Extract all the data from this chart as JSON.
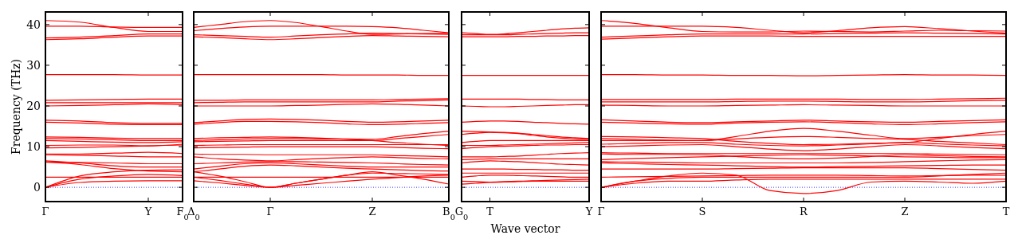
{
  "chart_data": [
    {
      "type": "line",
      "ylabel": "Frequency (THz)",
      "categories": [
        "Γ",
        null,
        null,
        "Y",
        "F$_{0}$"
      ],
      "ylim": [
        -3.5,
        43.1
      ],
      "yticks": [
        0,
        10,
        20,
        30,
        40
      ],
      "grid": false,
      "ref_lines": [
        {
          "axis": "y",
          "value": 0,
          "color": "#0000ff",
          "line_style": "dotted"
        }
      ],
      "series": [
        {
          "color": "#ff0000",
          "values": [
            0,
            1.2,
            1.5,
            1.6,
            1.6
          ]
        },
        {
          "color": "#ff0000",
          "values": [
            0,
            2,
            2.8,
            3.2,
            2.9
          ]
        },
        {
          "color": "#ff0000",
          "values": [
            0,
            2.8,
            3.8,
            4.2,
            4.3
          ]
        },
        {
          "color": "#ff0000",
          "values": [
            2.5,
            2.5,
            2.5,
            2.5,
            2.5
          ]
        },
        {
          "color": "#ff0000",
          "values": [
            6.2,
            5.6,
            4.6,
            4,
            3.8
          ]
        },
        {
          "color": "#ff0000",
          "values": [
            6.5,
            6,
            5.3,
            5,
            5
          ]
        },
        {
          "color": "#ff0000",
          "values": [
            6.2,
            6.1,
            6,
            5.8,
            5.8
          ]
        },
        {
          "color": "#ff0000",
          "values": [
            8,
            7.9,
            7.7,
            7.5,
            7.5
          ]
        },
        {
          "color": "#ff0000",
          "values": [
            8.2,
            8.2,
            8.4,
            8.6,
            8.3
          ]
        },
        {
          "color": "#ff0000",
          "values": [
            9.7,
            9.8,
            10,
            10.2,
            10.4
          ]
        },
        {
          "color": "#ff0000",
          "values": [
            10.3,
            10.4,
            10.4,
            10.2,
            10.6
          ]
        },
        {
          "color": "#ff0000",
          "values": [
            11.5,
            11.3,
            11.1,
            11,
            11.2
          ]
        },
        {
          "color": "#ff0000",
          "values": [
            12,
            11.9,
            11.7,
            11.5,
            11.5
          ]
        },
        {
          "color": "#ff0000",
          "values": [
            12.4,
            12.3,
            12.1,
            12,
            12
          ]
        },
        {
          "color": "#ff0000",
          "values": [
            16,
            15.8,
            15.5,
            15.4,
            15.4
          ]
        },
        {
          "color": "#ff0000",
          "values": [
            16.5,
            16.3,
            15.9,
            15.7,
            15.7
          ]
        },
        {
          "color": "#ff0000",
          "values": [
            20,
            20.1,
            20.3,
            20.5,
            20.3
          ]
        },
        {
          "color": "#ff0000",
          "values": [
            20.8,
            20.8,
            20.8,
            20.8,
            20.8
          ]
        },
        {
          "color": "#ff0000",
          "values": [
            21.4,
            21.5,
            21.6,
            21.7,
            21.7
          ]
        },
        {
          "color": "#ff0000",
          "values": [
            27.7,
            27.7,
            27.7,
            27.6,
            27.6
          ]
        },
        {
          "color": "#ff0000",
          "values": [
            36.3,
            36.5,
            36.9,
            37.2,
            37.2
          ]
        },
        {
          "color": "#ff0000",
          "values": [
            36.7,
            36.9,
            37.3,
            37.7,
            37.7
          ]
        },
        {
          "color": "#ff0000",
          "values": [
            39.6,
            39.6,
            39.4,
            39.3,
            39.3
          ]
        },
        {
          "color": "#ff0000",
          "values": [
            41,
            40.6,
            39.3,
            38.3,
            38.3
          ]
        }
      ]
    },
    {
      "type": "line",
      "categories": [
        "Δ$_{0}$",
        null,
        null,
        "Γ",
        null,
        null,
        null,
        "Z",
        null,
        null,
        "B$_{0}$"
      ],
      "ylim": [
        -3.5,
        43.1
      ],
      "yticks": [
        0,
        10,
        20,
        30,
        40
      ],
      "tick_labels": "x",
      "grid": false,
      "ref_lines": [
        {
          "axis": "y",
          "value": 0,
          "color": "#0000ff",
          "line_style": "dotted"
        }
      ],
      "series": [
        {
          "color": "#ff0000",
          "values": [
            1.6,
            1.1,
            0.5,
            0,
            0.5,
            1,
            1.5,
            2,
            2.4,
            2.8,
            3
          ]
        },
        {
          "color": "#ff0000",
          "values": [
            2.5,
            1.7,
            0.8,
            0,
            1,
            2,
            3,
            3.5,
            3.4,
            3.3,
            3.2
          ]
        },
        {
          "color": "#ff0000",
          "values": [
            3.8,
            2.8,
            1.4,
            0,
            1,
            2,
            3,
            3.8,
            3,
            2,
            0.8
          ]
        },
        {
          "color": "#ff0000",
          "values": [
            2.5,
            2.5,
            2.5,
            2.5,
            2.5,
            2.5,
            2.5,
            2.5,
            2.5,
            2.5,
            2.5
          ]
        },
        {
          "color": "#ff0000",
          "values": [
            3.8,
            4.5,
            5.2,
            5.5,
            5.3,
            5,
            4.7,
            4.5,
            4.3,
            4.1,
            4
          ]
        },
        {
          "color": "#ff0000",
          "values": [
            4.5,
            5.2,
            5.8,
            6,
            5.8,
            5.5,
            5.2,
            5,
            5,
            5,
            5
          ]
        },
        {
          "color": "#ff0000",
          "values": [
            5.8,
            6,
            6.2,
            6.3,
            6.3,
            6.2,
            6.1,
            6,
            5.8,
            5.6,
            5.5
          ]
        },
        {
          "color": "#ff0000",
          "values": [
            7.5,
            7,
            6.7,
            6.5,
            6.8,
            7.1,
            7.3,
            7.5,
            7.3,
            7.1,
            7
          ]
        },
        {
          "color": "#ff0000",
          "values": [
            8.2,
            8.1,
            8.1,
            8,
            8,
            8,
            8,
            8,
            7.8,
            7.7,
            7.5
          ]
        },
        {
          "color": "#ff0000",
          "values": [
            9.7,
            9.8,
            9.9,
            10,
            10,
            10,
            10,
            10,
            9.8,
            9.6,
            9.5
          ]
        },
        {
          "color": "#ff0000",
          "values": [
            10.3,
            10.4,
            10.5,
            10.5,
            10.5,
            10.5,
            10.5,
            10.5,
            10.5,
            10.5,
            10.5
          ]
        },
        {
          "color": "#ff0000",
          "values": [
            11.2,
            11.3,
            11.4,
            11.5,
            11.5,
            11.5,
            11.5,
            11.5,
            12,
            12.5,
            13
          ]
        },
        {
          "color": "#ff0000",
          "values": [
            11.5,
            11.7,
            11.9,
            12,
            12,
            11.9,
            11.9,
            11.8,
            12.5,
            13.2,
            13.8
          ]
        },
        {
          "color": "#ff0000",
          "values": [
            12,
            12.2,
            12.3,
            12.4,
            12.3,
            12.1,
            11.8,
            11.5,
            11,
            10.6,
            10.3
          ]
        },
        {
          "color": "#ff0000",
          "values": [
            15.5,
            15.9,
            16.2,
            16.2,
            16.1,
            15.9,
            15.6,
            15.4,
            15.5,
            15.7,
            15.9
          ]
        },
        {
          "color": "#ff0000",
          "values": [
            15.9,
            16.3,
            16.7,
            16.8,
            16.7,
            16.5,
            16.2,
            16,
            16.1,
            16.3,
            16.5
          ]
        },
        {
          "color": "#ff0000",
          "values": [
            20,
            20,
            20,
            20,
            20.1,
            20.2,
            20.4,
            20.5,
            20.4,
            20.2,
            20
          ]
        },
        {
          "color": "#ff0000",
          "values": [
            20.8,
            20.9,
            21,
            21,
            21,
            21,
            21,
            21,
            21.2,
            21.3,
            21.5
          ]
        },
        {
          "color": "#ff0000",
          "values": [
            21.4,
            21.4,
            21.5,
            21.5,
            21.5,
            21.5,
            21.5,
            21.5,
            21.6,
            21.7,
            21.8
          ]
        },
        {
          "color": "#ff0000",
          "values": [
            27.7,
            27.7,
            27.7,
            27.7,
            27.7,
            27.7,
            27.6,
            27.6,
            27.6,
            27.5,
            27.5
          ]
        },
        {
          "color": "#ff0000",
          "values": [
            37,
            36.8,
            36.5,
            36.3,
            36.5,
            36.8,
            37.1,
            37.3,
            37.2,
            37.1,
            37
          ]
        },
        {
          "color": "#ff0000",
          "values": [
            37.5,
            37.3,
            37.1,
            36.9,
            37.2,
            37.5,
            37.7,
            37.9,
            37.8,
            37.7,
            37.6
          ]
        },
        {
          "color": "#ff0000",
          "values": [
            38.5,
            39,
            39.4,
            39.6,
            39.6,
            39.6,
            39.6,
            39.5,
            39.2,
            38.6,
            38
          ]
        },
        {
          "color": "#ff0000",
          "values": [
            39.3,
            40,
            40.7,
            41,
            40.5,
            39.5,
            38.4,
            37.6,
            37.7,
            37.8,
            37.9
          ]
        }
      ]
    },
    {
      "type": "line",
      "xlabel": "Wave vector",
      "categories": [
        "G$_{0}$",
        null,
        "T",
        null,
        null,
        null,
        null,
        null,
        null,
        "Y"
      ],
      "ylim": [
        -3.5,
        43.1
      ],
      "yticks": [
        0,
        10,
        20,
        30,
        40
      ],
      "tick_labels": "x",
      "grid": false,
      "ref_lines": [
        {
          "axis": "y",
          "value": 0,
          "color": "#0000ff",
          "line_style": "dotted"
        }
      ],
      "series": [
        {
          "color": "#ff0000",
          "values": [
            0.8,
            1,
            1.2,
            1.3,
            1.4,
            1.5,
            1.5,
            1.5,
            1.5,
            1.5
          ]
        },
        {
          "color": "#ff0000",
          "values": [
            1.5,
            1.4,
            1.3,
            1.4,
            1.5,
            1.6,
            1.7,
            1.8,
            1.9,
            2
          ]
        },
        {
          "color": "#ff0000",
          "values": [
            2.5,
            2.8,
            3,
            3,
            2.9,
            2.8,
            2.7,
            2.6,
            2.5,
            2.5
          ]
        },
        {
          "color": "#ff0000",
          "values": [
            3.5,
            3.5,
            3.5,
            3.5,
            3.5,
            3.5,
            3.5,
            3.5,
            3.5,
            3.5
          ]
        },
        {
          "color": "#ff0000",
          "values": [
            4.5,
            4.5,
            4.5,
            4.5,
            4.4,
            4.4,
            4.3,
            4.3,
            4.2,
            4.2
          ]
        },
        {
          "color": "#ff0000",
          "values": [
            6,
            6.3,
            6.5,
            6.4,
            6.3,
            6.1,
            5.9,
            5.7,
            5.6,
            5.5
          ]
        },
        {
          "color": "#ff0000",
          "values": [
            6.8,
            6.9,
            7,
            7,
            7,
            7,
            7,
            7,
            7,
            7
          ]
        },
        {
          "color": "#ff0000",
          "values": [
            7.5,
            7.5,
            7.5,
            7.6,
            7.7,
            7.9,
            8.1,
            8.3,
            8.4,
            8.5
          ]
        },
        {
          "color": "#ff0000",
          "values": [
            9.5,
            9.8,
            10,
            10.1,
            10.2,
            10.3,
            10.4,
            10.4,
            10.5,
            10.5
          ]
        },
        {
          "color": "#ff0000",
          "values": [
            10.3,
            10.3,
            10.3,
            10.4,
            10.5,
            10.6,
            10.7,
            10.8,
            10.9,
            11
          ]
        },
        {
          "color": "#ff0000",
          "values": [
            11,
            11.3,
            11.5,
            11.5,
            11.5,
            11.5,
            11.5,
            11.5,
            11.5,
            11.5
          ]
        },
        {
          "color": "#ff0000",
          "values": [
            13,
            13.3,
            13.5,
            13.4,
            13.2,
            12.8,
            12.4,
            12.1,
            11.9,
            11.8
          ]
        },
        {
          "color": "#ff0000",
          "values": [
            13.8,
            13.7,
            13.6,
            13.5,
            13.3,
            13,
            12.7,
            12.4,
            12.2,
            12
          ]
        },
        {
          "color": "#ff0000",
          "values": [
            16,
            16.2,
            16.3,
            16.3,
            16.2,
            16,
            15.9,
            15.7,
            15.6,
            15.5
          ]
        },
        {
          "color": "#ff0000",
          "values": [
            20,
            19.9,
            19.8,
            19.8,
            19.9,
            20,
            20.1,
            20.2,
            20.3,
            20.3
          ]
        },
        {
          "color": "#ff0000",
          "values": [
            21.7,
            21.7,
            21.7,
            21.7,
            21.7,
            21.6,
            21.6,
            21.5,
            21.5,
            21.5
          ]
        },
        {
          "color": "#ff0000",
          "values": [
            27.5,
            27.5,
            27.5,
            27.5,
            27.5,
            27.5,
            27.5,
            27.5,
            27.5,
            27.5
          ]
        },
        {
          "color": "#ff0000",
          "values": [
            37,
            37,
            37,
            37,
            37.1,
            37.1,
            37.2,
            37.2,
            37.3,
            37.3
          ]
        },
        {
          "color": "#ff0000",
          "values": [
            37.5,
            37.5,
            37.5,
            37.5,
            37.6,
            37.7,
            37.8,
            37.9,
            38,
            38
          ]
        },
        {
          "color": "#ff0000",
          "values": [
            38,
            37.8,
            37.6,
            37.7,
            38,
            38.3,
            38.6,
            38.9,
            39.1,
            39.2
          ]
        }
      ]
    },
    {
      "type": "line",
      "categories": [
        "Γ",
        null,
        null,
        "S",
        null,
        null,
        "R",
        null,
        null,
        "Z",
        null,
        null,
        "T"
      ],
      "ylim": [
        -3.5,
        43.1
      ],
      "yticks": [
        0,
        10,
        20,
        30,
        40
      ],
      "tick_labels": "x",
      "grid": false,
      "ref_lines": [
        {
          "axis": "y",
          "value": 0,
          "color": "#0000ff",
          "line_style": "dotted"
        }
      ],
      "series": [
        {
          "color": "#ff0000",
          "values": [
            0,
            1.5,
            2.8,
            3.5,
            3,
            -0.8,
            -1.5,
            -0.8,
            1.3,
            1.5,
            1.3,
            1,
            1.5
          ]
        },
        {
          "color": "#ff0000",
          "values": [
            0,
            1,
            1.5,
            1.5,
            1.8,
            2,
            2,
            2,
            2,
            2,
            2,
            2,
            2
          ]
        },
        {
          "color": "#ff0000",
          "values": [
            0,
            1.5,
            2.2,
            2.5,
            2.5,
            2.5,
            2.5,
            2.5,
            2.5,
            2.5,
            2.8,
            3.2,
            3.5
          ]
        },
        {
          "color": "#ff0000",
          "values": [
            2.5,
            2.6,
            2.7,
            2.8,
            2.9,
            3,
            3,
            3,
            2.9,
            2.8,
            2.9,
            3,
            3
          ]
        },
        {
          "color": "#ff0000",
          "values": [
            4.5,
            4.5,
            4.5,
            4.5,
            4.6,
            4.7,
            4.8,
            4.8,
            4.8,
            4.8,
            4.6,
            4.4,
            4.2
          ]
        },
        {
          "color": "#ff0000",
          "values": [
            6,
            5.8,
            5.6,
            5.5,
            5.3,
            5.1,
            5,
            5.1,
            5.2,
            5.3,
            5.4,
            5.5,
            5.5
          ]
        },
        {
          "color": "#ff0000",
          "values": [
            6.3,
            6.2,
            6.1,
            6,
            6,
            6,
            6,
            6,
            6.1,
            6.3,
            6.5,
            6.7,
            6.8
          ]
        },
        {
          "color": "#ff0000",
          "values": [
            6.8,
            7.1,
            7.3,
            7.5,
            7.7,
            7.9,
            8,
            7.9,
            7.7,
            7.5,
            7.4,
            7.3,
            7.3
          ]
        },
        {
          "color": "#ff0000",
          "values": [
            8.2,
            8.1,
            8.1,
            8,
            7.6,
            7.2,
            7,
            7.2,
            7.6,
            8,
            7.8,
            7.6,
            7.5
          ]
        },
        {
          "color": "#ff0000",
          "values": [
            8.5,
            8.4,
            8.3,
            8.3,
            8.3,
            8.3,
            8.3,
            8.3,
            8.3,
            8.3,
            8.2,
            8.1,
            8
          ]
        },
        {
          "color": "#ff0000",
          "values": [
            10,
            10.2,
            10.4,
            10.5,
            10,
            9.4,
            9,
            9.4,
            10,
            10.5,
            10.2,
            9.8,
            9.5
          ]
        },
        {
          "color": "#ff0000",
          "values": [
            10.6,
            10.8,
            11,
            11,
            10.6,
            10.3,
            10.2,
            10.4,
            10.7,
            11,
            10.7,
            10.4,
            10.2
          ]
        },
        {
          "color": "#ff0000",
          "values": [
            11.5,
            11.5,
            11.5,
            11.5,
            11.9,
            12.3,
            12.5,
            12.3,
            12,
            11.8,
            11.3,
            10.9,
            10.5
          ]
        },
        {
          "color": "#ff0000",
          "values": [
            12,
            11.8,
            11.6,
            11.5,
            12.5,
            13.8,
            14.5,
            13.8,
            12.8,
            12,
            12.3,
            12.7,
            13
          ]
        },
        {
          "color": "#ff0000",
          "values": [
            12.5,
            12.4,
            12.2,
            12,
            11.3,
            10.8,
            10.5,
            10.6,
            10.8,
            11,
            12,
            13,
            13.8
          ]
        },
        {
          "color": "#ff0000",
          "values": [
            16,
            15.8,
            15.6,
            15.5,
            15.8,
            16,
            16.1,
            15.9,
            15.6,
            15.4,
            15.6,
            15.9,
            16.1
          ]
        },
        {
          "color": "#ff0000",
          "values": [
            16.6,
            16.3,
            16,
            15.9,
            16.1,
            16.3,
            16.5,
            16.3,
            16.1,
            16,
            16.2,
            16.4,
            16.6
          ]
        },
        {
          "color": "#ff0000",
          "values": [
            20.2,
            20.1,
            20,
            20,
            20.1,
            20.2,
            20.3,
            20.2,
            20.1,
            20,
            20,
            20,
            20
          ]
        },
        {
          "color": "#ff0000",
          "values": [
            21,
            21,
            21,
            21,
            21.1,
            21.2,
            21.2,
            21.1,
            21,
            21,
            21.1,
            21.3,
            21.4
          ]
        },
        {
          "color": "#ff0000",
          "values": [
            21.6,
            21.6,
            21.6,
            21.6,
            21.7,
            21.7,
            21.7,
            21.7,
            21.6,
            21.6,
            21.7,
            21.8,
            21.9
          ]
        },
        {
          "color": "#ff0000",
          "values": [
            27.7,
            27.7,
            27.6,
            27.6,
            27.5,
            27.5,
            27.4,
            27.5,
            27.6,
            27.7,
            27.6,
            27.6,
            27.5
          ]
        },
        {
          "color": "#ff0000",
          "values": [
            36.4,
            36.7,
            37,
            37.2,
            37.2,
            37.2,
            37.1,
            37.1,
            37.1,
            37.1,
            37.1,
            37.1,
            37.1
          ]
        },
        {
          "color": "#ff0000",
          "values": [
            36.9,
            37.2,
            37.5,
            37.7,
            37.7,
            37.7,
            37.7,
            37.8,
            37.9,
            38,
            37.9,
            37.8,
            37.7
          ]
        },
        {
          "color": "#ff0000",
          "values": [
            39.6,
            39.6,
            39.6,
            39.6,
            39.3,
            38.6,
            38,
            38.5,
            39.2,
            39.5,
            39,
            38.4,
            37.9
          ]
        },
        {
          "color": "#ff0000",
          "values": [
            41,
            40.3,
            39.2,
            38.3,
            38.2,
            38.2,
            38.4,
            38.3,
            38.2,
            38.4,
            38.6,
            38.5,
            38.4
          ]
        }
      ]
    }
  ]
}
